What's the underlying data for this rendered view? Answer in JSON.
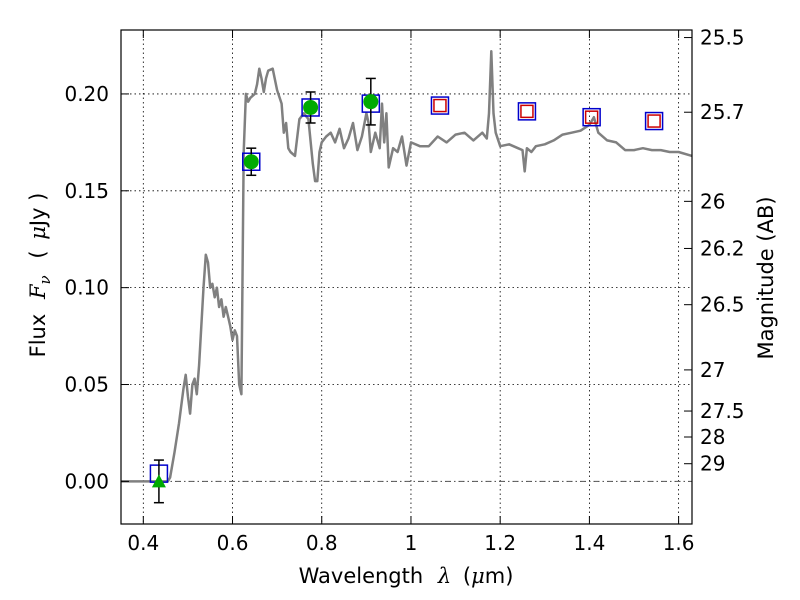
{
  "chart_data": {
    "type": "scatter",
    "xlabel": "Wavelength",
    "xlabel_symbol": "λ",
    "xlabel_unit_open": "(",
    "xlabel_unit_mu": "μ",
    "xlabel_unit_rest": "m)",
    "ylabel": "Flux",
    "ylabel_symbol_main": "F",
    "ylabel_symbol_sub": "ν",
    "ylabel_unit_open": "(",
    "ylabel_unit_mu": "μ",
    "ylabel_unit_rest": "Jy )",
    "y2label": "Magnitude (AB)",
    "xlim": [
      0.35,
      1.63
    ],
    "ylim": [
      -0.022,
      0.233
    ],
    "grid": true,
    "x_ticks": [
      0.4,
      0.6,
      0.8,
      1.0,
      1.2,
      1.4,
      1.6
    ],
    "x_tick_labels": [
      "0.4",
      "0.6",
      "0.8",
      "1",
      "1.2",
      "1.4",
      "1.6"
    ],
    "y_ticks": [
      0.0,
      0.05,
      0.1,
      0.15,
      0.2
    ],
    "y_tick_labels": [
      "0.00",
      "0.05",
      "0.10",
      "0.15",
      "0.20"
    ],
    "magnitude_ticks": [
      {
        "label": "25.5",
        "mag": 25.5
      },
      {
        "label": "25.7",
        "mag": 25.7
      },
      {
        "label": "26",
        "mag": 26.0
      },
      {
        "label": "26.2",
        "mag": 26.2
      },
      {
        "label": "26.5",
        "mag": 26.5
      },
      {
        "label": "27",
        "mag": 27.0
      },
      {
        "label": "27.5",
        "mag": 27.5
      },
      {
        "label": "28",
        "mag": 28.0
      },
      {
        "label": "29",
        "mag": 29.0
      }
    ],
    "model_spectrum": {
      "color": "#808080",
      "x": [
        0.35,
        0.4,
        0.44,
        0.455,
        0.46,
        0.47,
        0.48,
        0.49,
        0.495,
        0.5,
        0.505,
        0.51,
        0.515,
        0.52,
        0.525,
        0.53,
        0.535,
        0.54,
        0.545,
        0.55,
        0.555,
        0.56,
        0.565,
        0.57,
        0.575,
        0.58,
        0.585,
        0.59,
        0.595,
        0.6,
        0.605,
        0.61,
        0.615,
        0.62,
        0.625,
        0.63,
        0.635,
        0.64,
        0.65,
        0.655,
        0.66,
        0.665,
        0.67,
        0.675,
        0.68,
        0.69,
        0.7,
        0.71,
        0.715,
        0.72,
        0.725,
        0.73,
        0.74,
        0.75,
        0.76,
        0.77,
        0.78,
        0.785,
        0.79,
        0.795,
        0.8,
        0.81,
        0.82,
        0.83,
        0.84,
        0.85,
        0.86,
        0.87,
        0.88,
        0.89,
        0.9,
        0.905,
        0.91,
        0.92,
        0.93,
        0.935,
        0.94,
        0.945,
        0.95,
        0.96,
        0.97,
        0.98,
        0.99,
        1.0,
        1.02,
        1.04,
        1.06,
        1.08,
        1.1,
        1.12,
        1.14,
        1.16,
        1.17,
        1.175,
        1.18,
        1.185,
        1.19,
        1.2,
        1.22,
        1.24,
        1.25,
        1.255,
        1.26,
        1.27,
        1.28,
        1.3,
        1.32,
        1.34,
        1.36,
        1.38,
        1.4,
        1.41,
        1.42,
        1.44,
        1.46,
        1.48,
        1.5,
        1.52,
        1.54,
        1.56,
        1.58,
        1.6,
        1.63
      ],
      "y": [
        0.0,
        0.0,
        0.0,
        0.0,
        0.002,
        0.015,
        0.03,
        0.048,
        0.055,
        0.044,
        0.035,
        0.05,
        0.053,
        0.045,
        0.06,
        0.08,
        0.1,
        0.117,
        0.113,
        0.1,
        0.102,
        0.095,
        0.1,
        0.09,
        0.094,
        0.085,
        0.09,
        0.085,
        0.08,
        0.073,
        0.078,
        0.075,
        0.05,
        0.045,
        0.17,
        0.2,
        0.196,
        0.198,
        0.2,
        0.205,
        0.213,
        0.208,
        0.201,
        0.208,
        0.212,
        0.213,
        0.202,
        0.195,
        0.18,
        0.185,
        0.172,
        0.17,
        0.168,
        0.187,
        0.19,
        0.187,
        0.164,
        0.155,
        0.155,
        0.17,
        0.175,
        0.178,
        0.18,
        0.175,
        0.182,
        0.172,
        0.177,
        0.185,
        0.171,
        0.178,
        0.19,
        0.185,
        0.17,
        0.18,
        0.172,
        0.195,
        0.175,
        0.19,
        0.162,
        0.172,
        0.17,
        0.178,
        0.163,
        0.175,
        0.173,
        0.173,
        0.178,
        0.175,
        0.179,
        0.18,
        0.176,
        0.18,
        0.177,
        0.19,
        0.222,
        0.19,
        0.18,
        0.173,
        0.174,
        0.172,
        0.171,
        0.16,
        0.172,
        0.17,
        0.173,
        0.174,
        0.176,
        0.179,
        0.18,
        0.181,
        0.184,
        0.188,
        0.18,
        0.176,
        0.175,
        0.171,
        0.171,
        0.172,
        0.171,
        0.171,
        0.17,
        0.17,
        0.168
      ]
    },
    "series": [
      {
        "name": "",
        "marker": "square-open",
        "color": "#0000cc",
        "points": [
          {
            "x": 0.435,
            "y": 0.004
          },
          {
            "x": 0.642,
            "y": 0.165
          },
          {
            "x": 0.775,
            "y": 0.193
          },
          {
            "x": 0.91,
            "y": 0.195
          },
          {
            "x": 1.065,
            "y": 0.194
          },
          {
            "x": 1.26,
            "y": 0.191
          },
          {
            "x": 1.405,
            "y": 0.188
          },
          {
            "x": 1.545,
            "y": 0.186
          }
        ]
      },
      {
        "name": "",
        "marker": "circle-filled",
        "color": "#00aa00",
        "points": [
          {
            "x": 0.642,
            "y": 0.165,
            "err": 0.007
          },
          {
            "x": 0.775,
            "y": 0.193,
            "err": 0.008
          },
          {
            "x": 0.91,
            "y": 0.196,
            "err": 0.012
          }
        ]
      },
      {
        "name": "",
        "marker": "triangle-filled",
        "color": "#00aa00",
        "points": [
          {
            "x": 0.435,
            "y": 0.0,
            "err": 0.011
          }
        ]
      },
      {
        "name": "",
        "marker": "square-open-small",
        "color": "#cc0000",
        "points": [
          {
            "x": 1.065,
            "y": 0.194
          },
          {
            "x": 1.26,
            "y": 0.191
          },
          {
            "x": 1.405,
            "y": 0.188
          },
          {
            "x": 1.545,
            "y": 0.186
          }
        ]
      }
    ]
  }
}
